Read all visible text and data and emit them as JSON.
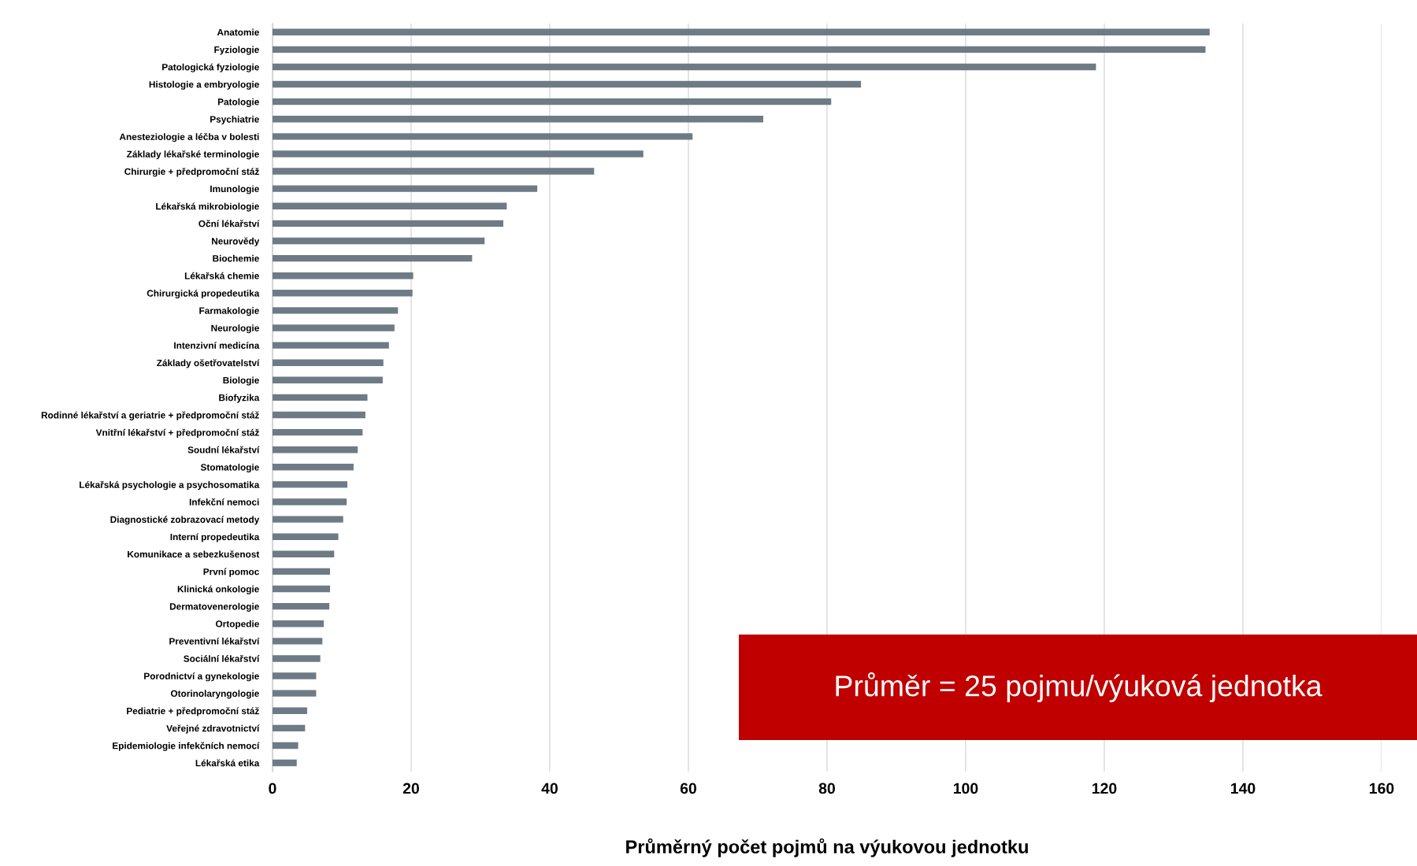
{
  "chart_data": {
    "type": "bar",
    "orientation": "horizontal",
    "xlabel": "Průměrný počet pojmů na výukovou jednotku",
    "categories": [
      "Anatomie",
      "Fyziologie",
      "Patologická fyziologie",
      "Histologie a embryologie",
      "Patologie",
      "Psychiatrie",
      "Anesteziologie a léčba v bolesti",
      "Základy lékařské terminologie",
      "Chirurgie + předpromoční stáž",
      "Imunologie",
      "Lékařská mikrobiologie",
      "Oční lékařství",
      "Neurovědy",
      "Biochemie",
      "Lékařská chemie",
      "Chirurgická propedeutika",
      "Farmakologie",
      "Neurologie",
      "Intenzivní medicína",
      "Základy ošetřovatelství",
      "Biologie",
      "Biofyzika",
      "Rodinné lékařství a geriatrie + předpromoční stáž",
      "Vnitřní lékařství + předpromoční stáž",
      "Soudní lékařství",
      "Stomatologie",
      "Lékařská psychologie a psychosomatika",
      "Infekční nemoci",
      "Diagnostické zobrazovací metody",
      "Interní propedeutika",
      "Komunikace a sebezkušenost",
      "První pomoc",
      "Klinická onkologie",
      "Dermatovenerologie",
      "Ortopedie",
      "Preventivní lékařství",
      "Sociální lékařství",
      "Porodnictví a gynekologie",
      "Otorinolaryngologie",
      "Pediatrie + předpromoční stáž",
      "Veřejné zdravotnictví",
      "Epidemiologie infekčních nemocí",
      "Lékařská etika"
    ],
    "values": [
      135.2,
      134.6,
      118.8,
      84.9,
      80.6,
      70.8,
      60.6,
      53.5,
      46.4,
      38.2,
      33.8,
      33.3,
      30.6,
      28.8,
      20.3,
      20.2,
      18.1,
      17.6,
      16.8,
      16.0,
      15.9,
      13.7,
      13.4,
      13.0,
      12.3,
      11.7,
      10.8,
      10.7,
      10.2,
      9.5,
      8.9,
      8.3,
      8.3,
      8.2,
      7.4,
      7.2,
      6.9,
      6.3,
      6.3,
      5.0,
      4.7,
      3.7,
      3.5
    ],
    "color": "#6d7b85",
    "xlim": [
      0,
      160
    ],
    "xticks": [
      0,
      20,
      40,
      60,
      80,
      100,
      120,
      140,
      160
    ],
    "grid": "x",
    "annotations": [
      "Průměr = 25 pojmu/výuková jednotka"
    ]
  }
}
